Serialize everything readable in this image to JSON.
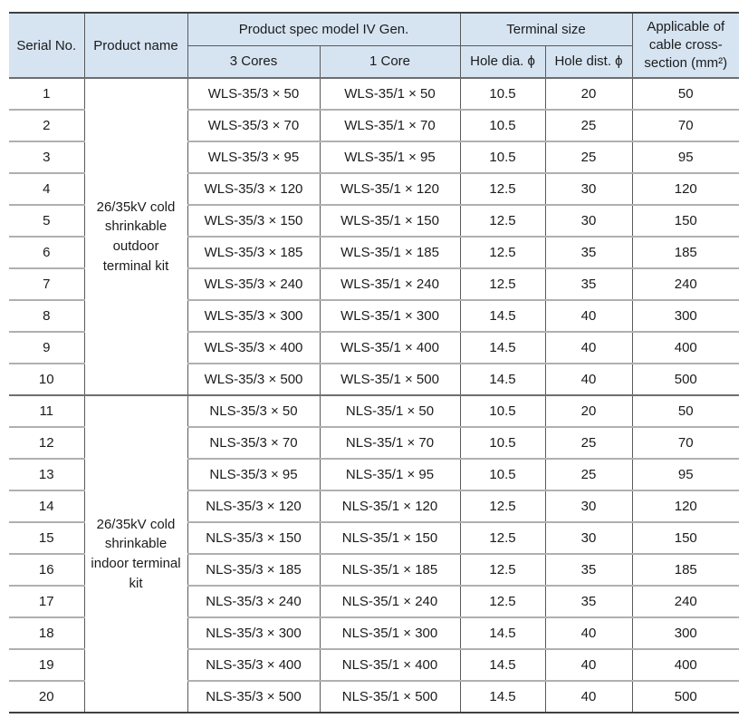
{
  "table": {
    "headers": {
      "serial": "Serial No.",
      "product_name": "Product name",
      "spec_group": "Product spec model IV Gen.",
      "cores3": "3 Cores",
      "core1": "1 Core",
      "terminal_group": "Terminal size",
      "hole_dia": "Hole dia. ϕ",
      "hole_dist": "Hole dist. ϕ",
      "applicable": "Applicable of cable cross-section (mm²)"
    },
    "colors": {
      "header_bg": "#d6e4f2",
      "row_line": "#b0b0b0",
      "column_line": "#595959",
      "outer_line": "#404040",
      "text": "#1b1b1b"
    },
    "groups": [
      {
        "product_name": "26/35kV cold shrinkable outdoor terminal kit",
        "rows": [
          {
            "serial": "1",
            "cores3": "WLS-35/3 × 50",
            "core1": "WLS-35/1 × 50",
            "hole_dia": "10.5",
            "hole_dist": "20",
            "cross_section": "50"
          },
          {
            "serial": "2",
            "cores3": "WLS-35/3 × 70",
            "core1": "WLS-35/1 × 70",
            "hole_dia": "10.5",
            "hole_dist": "25",
            "cross_section": "70"
          },
          {
            "serial": "3",
            "cores3": "WLS-35/3 × 95",
            "core1": "WLS-35/1 × 95",
            "hole_dia": "10.5",
            "hole_dist": "25",
            "cross_section": "95"
          },
          {
            "serial": "4",
            "cores3": "WLS-35/3 × 120",
            "core1": "WLS-35/1 × 120",
            "hole_dia": "12.5",
            "hole_dist": "30",
            "cross_section": "120"
          },
          {
            "serial": "5",
            "cores3": "WLS-35/3 × 150",
            "core1": "WLS-35/1 × 150",
            "hole_dia": "12.5",
            "hole_dist": "30",
            "cross_section": "150"
          },
          {
            "serial": "6",
            "cores3": "WLS-35/3 × 185",
            "core1": "WLS-35/1 × 185",
            "hole_dia": "12.5",
            "hole_dist": "35",
            "cross_section": "185"
          },
          {
            "serial": "7",
            "cores3": "WLS-35/3 × 240",
            "core1": "WLS-35/1 × 240",
            "hole_dia": "12.5",
            "hole_dist": "35",
            "cross_section": "240"
          },
          {
            "serial": "8",
            "cores3": "WLS-35/3 × 300",
            "core1": "WLS-35/1 × 300",
            "hole_dia": "14.5",
            "hole_dist": "40",
            "cross_section": "300"
          },
          {
            "serial": "9",
            "cores3": "WLS-35/3 × 400",
            "core1": "WLS-35/1 × 400",
            "hole_dia": "14.5",
            "hole_dist": "40",
            "cross_section": "400"
          },
          {
            "serial": "10",
            "cores3": "WLS-35/3 × 500",
            "core1": "WLS-35/1 × 500",
            "hole_dia": "14.5",
            "hole_dist": "40",
            "cross_section": "500"
          }
        ]
      },
      {
        "product_name": "26/35kV cold shrinkable indoor terminal kit",
        "rows": [
          {
            "serial": "11",
            "cores3": "NLS-35/3 × 50",
            "core1": "NLS-35/1 × 50",
            "hole_dia": "10.5",
            "hole_dist": "20",
            "cross_section": "50"
          },
          {
            "serial": "12",
            "cores3": "NLS-35/3 × 70",
            "core1": "NLS-35/1 × 70",
            "hole_dia": "10.5",
            "hole_dist": "25",
            "cross_section": "70"
          },
          {
            "serial": "13",
            "cores3": "NLS-35/3 × 95",
            "core1": "NLS-35/1 × 95",
            "hole_dia": "10.5",
            "hole_dist": "25",
            "cross_section": "95"
          },
          {
            "serial": "14",
            "cores3": "NLS-35/3 × 120",
            "core1": "NLS-35/1 × 120",
            "hole_dia": "12.5",
            "hole_dist": "30",
            "cross_section": "120"
          },
          {
            "serial": "15",
            "cores3": "NLS-35/3 × 150",
            "core1": "NLS-35/1 × 150",
            "hole_dia": "12.5",
            "hole_dist": "30",
            "cross_section": "150"
          },
          {
            "serial": "16",
            "cores3": "NLS-35/3 × 185",
            "core1": "NLS-35/1 × 185",
            "hole_dia": "12.5",
            "hole_dist": "35",
            "cross_section": "185"
          },
          {
            "serial": "17",
            "cores3": "NLS-35/3 × 240",
            "core1": "NLS-35/1 × 240",
            "hole_dia": "12.5",
            "hole_dist": "35",
            "cross_section": "240"
          },
          {
            "serial": "18",
            "cores3": "NLS-35/3 × 300",
            "core1": "NLS-35/1 × 300",
            "hole_dia": "14.5",
            "hole_dist": "40",
            "cross_section": "300"
          },
          {
            "serial": "19",
            "cores3": "NLS-35/3 × 400",
            "core1": "NLS-35/1 × 400",
            "hole_dia": "14.5",
            "hole_dist": "40",
            "cross_section": "400"
          },
          {
            "serial": "20",
            "cores3": "NLS-35/3 × 500",
            "core1": "NLS-35/1 × 500",
            "hole_dia": "14.5",
            "hole_dist": "40",
            "cross_section": "500"
          }
        ]
      }
    ]
  }
}
